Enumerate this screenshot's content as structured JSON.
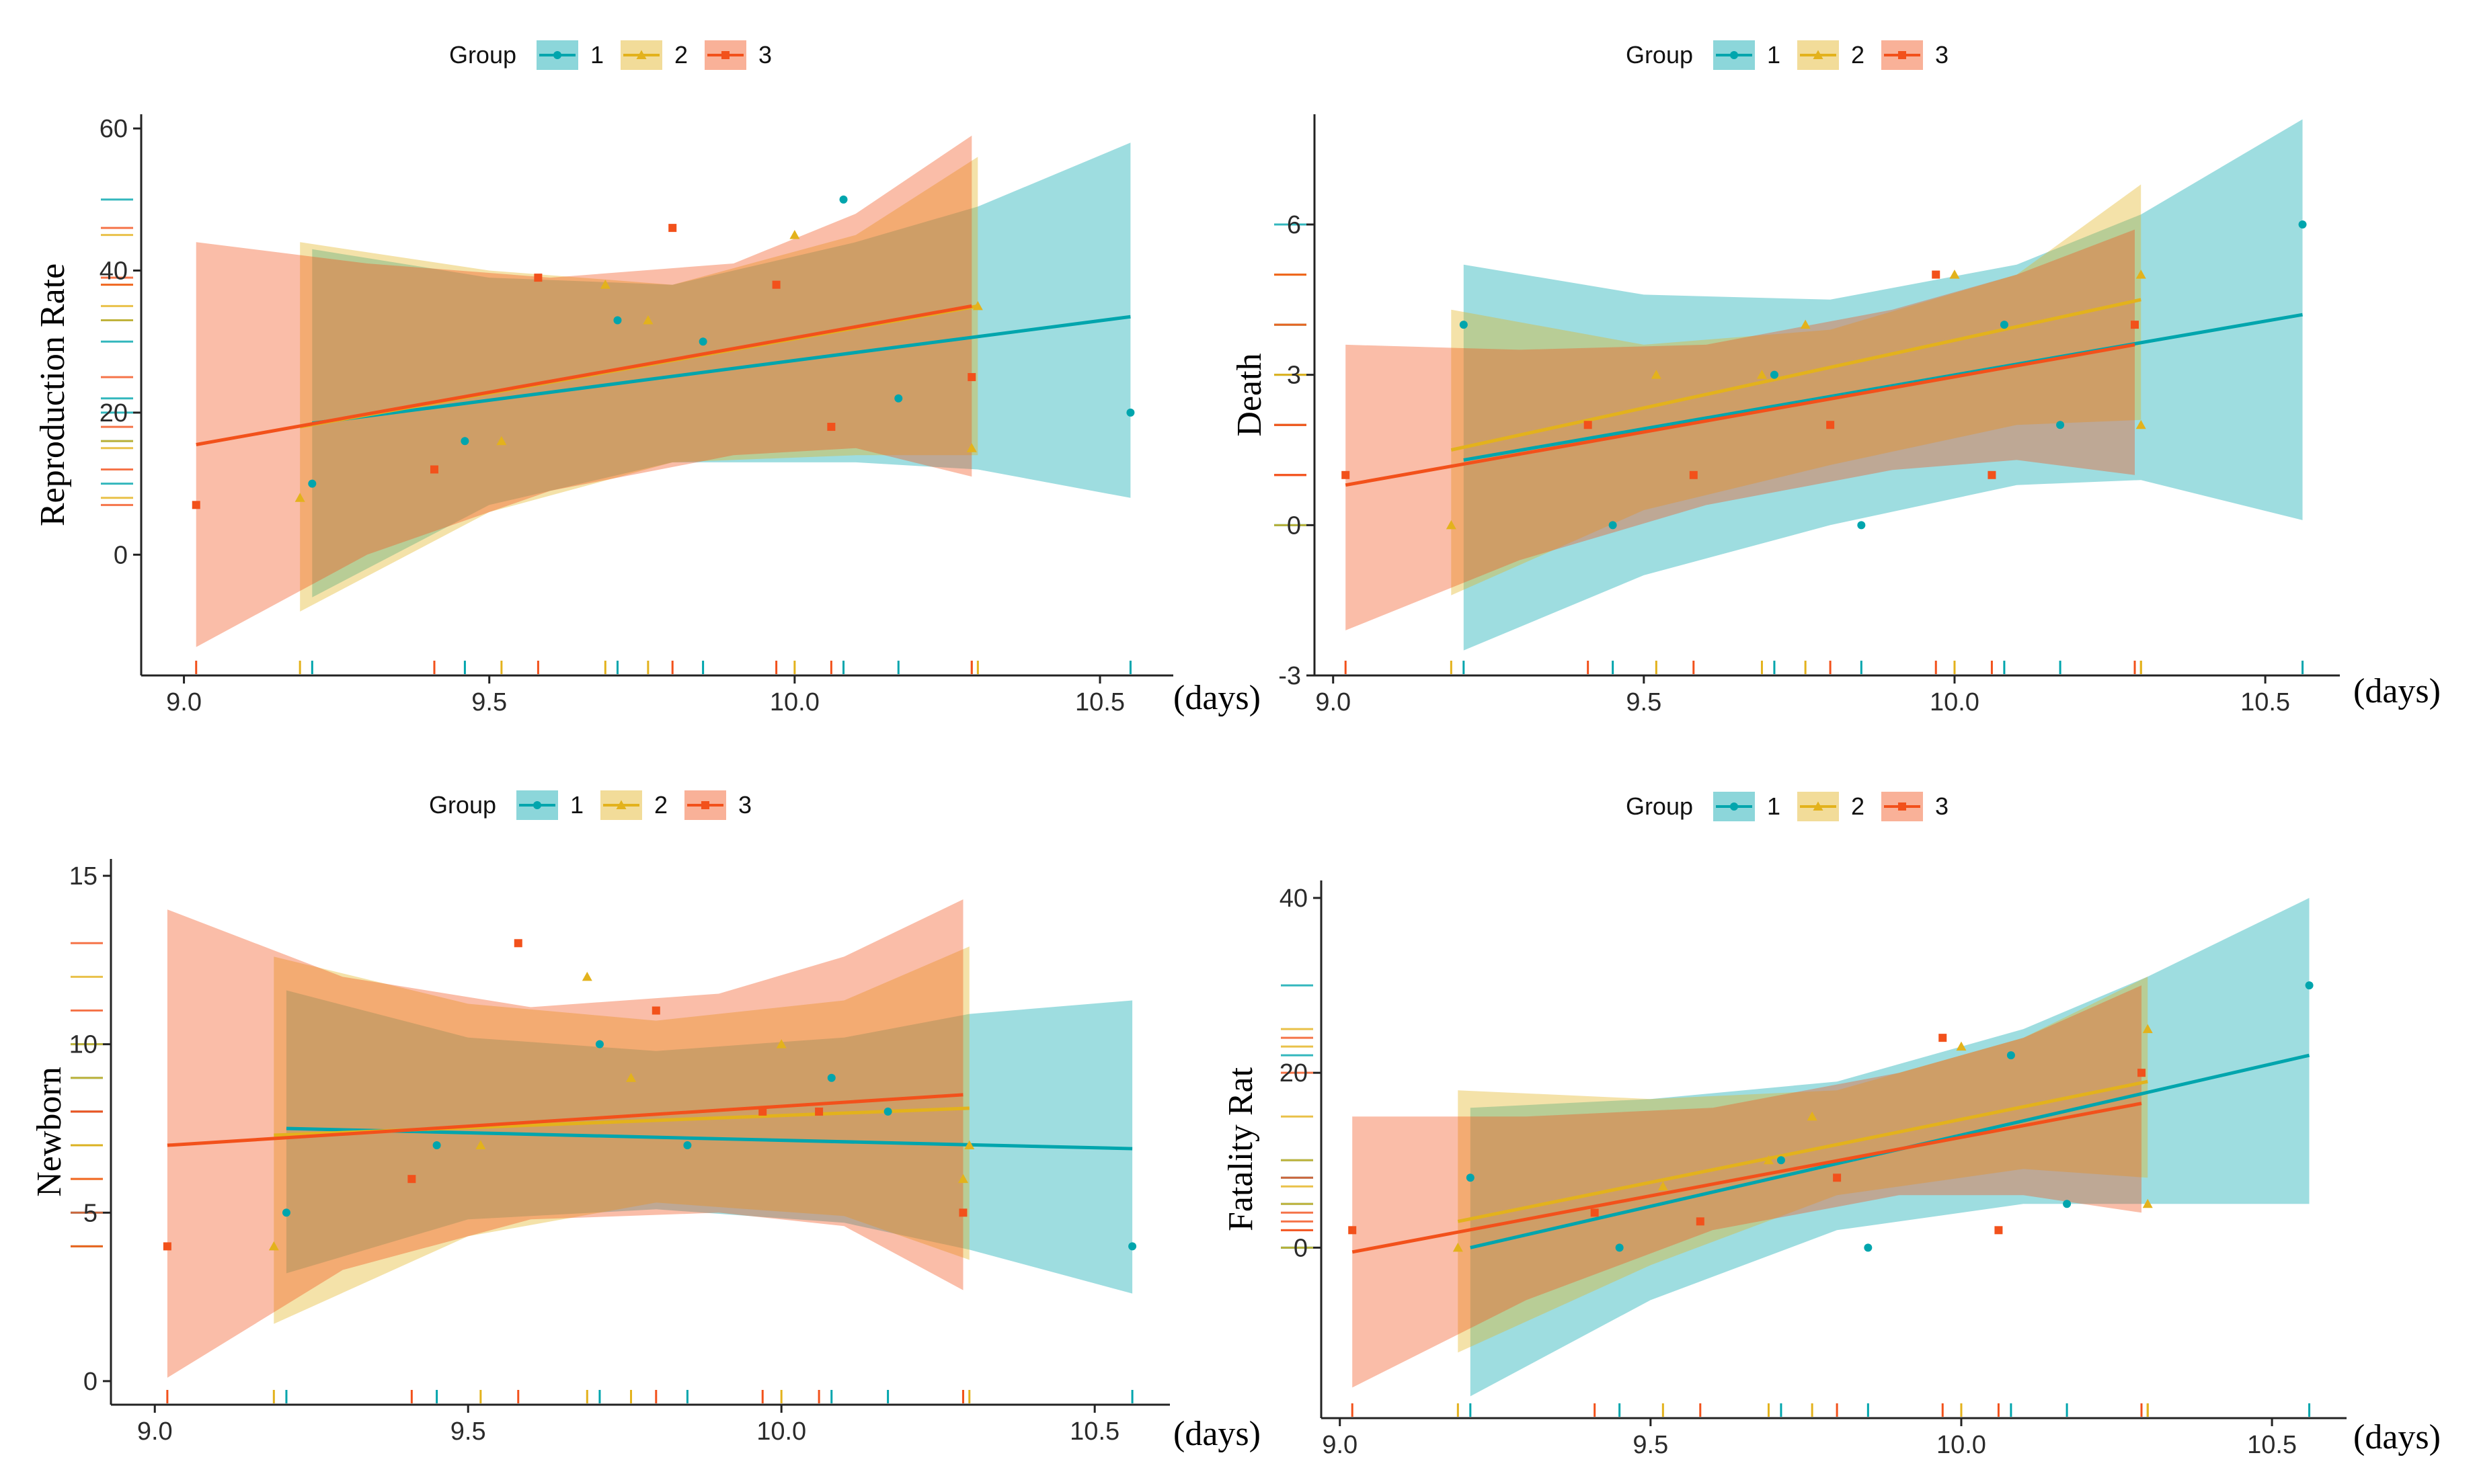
{
  "legend_title": "Group",
  "group_labels": [
    "1",
    "2",
    "3"
  ],
  "colors": {
    "1": "#00A5AD",
    "2": "#E3B21C",
    "3": "#F2511B"
  },
  "chart_data": [
    {
      "type": "scatter",
      "panel": "top-left",
      "title": "",
      "xlabel": "(days)",
      "ylabel": "Reproduction Rate",
      "xlim": [
        8.93,
        10.62
      ],
      "ylim": [
        -17,
        62
      ],
      "xticks": [
        "9.0",
        "9.5",
        "10.0",
        "10.5"
      ],
      "yticks": [
        "0",
        "20",
        "40",
        "60"
      ],
      "xtick_values": [
        9.0,
        9.5,
        10.0,
        10.5
      ],
      "ytick_values": [
        0,
        20,
        40,
        60
      ],
      "series": [
        {
          "name": "1",
          "points": [
            [
              9.21,
              10
            ],
            [
              9.46,
              16
            ],
            [
              9.71,
              33
            ],
            [
              9.85,
              30
            ],
            [
              10.08,
              50
            ],
            [
              10.17,
              22
            ],
            [
              10.55,
              20
            ]
          ],
          "fit": {
            "x": [
              9.21,
              10.55
            ],
            "y": [
              18.5,
              33.5
            ]
          },
          "band": {
            "x": [
              9.21,
              9.5,
              9.8,
              10.1,
              10.3,
              10.55
            ],
            "lower": [
              -6,
              7,
              13,
              13,
              12,
              8
            ],
            "upper": [
              43,
              39,
              38,
              44,
              49,
              58
            ]
          }
        },
        {
          "name": "2",
          "points": [
            [
              9.19,
              8
            ],
            [
              9.52,
              16
            ],
            [
              9.69,
              38
            ],
            [
              9.76,
              33
            ],
            [
              10.0,
              45
            ],
            [
              10.29,
              15
            ],
            [
              10.3,
              35
            ]
          ],
          "fit": {
            "x": [
              9.19,
              10.3
            ],
            "y": [
              18,
              35
            ]
          },
          "band": {
            "x": [
              9.19,
              9.5,
              9.8,
              10.1,
              10.3
            ],
            "lower": [
              -8,
              6,
              13,
              14,
              14
            ],
            "upper": [
              44,
              40,
              38,
              45,
              56
            ]
          }
        },
        {
          "name": "3",
          "points": [
            [
              9.02,
              7
            ],
            [
              9.41,
              12
            ],
            [
              9.58,
              39
            ],
            [
              9.8,
              46
            ],
            [
              9.97,
              38
            ],
            [
              10.06,
              18
            ],
            [
              10.29,
              25
            ]
          ],
          "fit": {
            "x": [
              9.02,
              10.29
            ],
            "y": [
              15.5,
              35
            ]
          },
          "band": {
            "x": [
              9.02,
              9.3,
              9.6,
              9.9,
              10.1,
              10.29
            ],
            "lower": [
              -13,
              0,
              9,
              14,
              15,
              11
            ],
            "upper": [
              44,
              41,
              39,
              41,
              48,
              59
            ]
          }
        }
      ]
    },
    {
      "type": "scatter",
      "panel": "top-right",
      "title": "",
      "xlabel": "(days)",
      "ylabel": "Death",
      "xlim": [
        8.97,
        10.62
      ],
      "ylim": [
        -3,
        8.2
      ],
      "xticks": [
        "9.0",
        "9.5",
        "10.0",
        "10.5"
      ],
      "yticks": [
        "-3",
        "0",
        "3",
        "6"
      ],
      "xtick_values": [
        9.0,
        9.5,
        10.0,
        10.5
      ],
      "ytick_values": [
        -3,
        0,
        3,
        6
      ],
      "series": [
        {
          "name": "1",
          "points": [
            [
              9.21,
              4
            ],
            [
              9.45,
              0
            ],
            [
              9.71,
              3
            ],
            [
              9.85,
              0
            ],
            [
              10.08,
              4
            ],
            [
              10.17,
              2
            ],
            [
              10.56,
              6
            ]
          ],
          "fit": {
            "x": [
              9.21,
              10.56
            ],
            "y": [
              1.3,
              4.2
            ]
          },
          "band": {
            "x": [
              9.21,
              9.5,
              9.8,
              10.1,
              10.3,
              10.56
            ],
            "lower": [
              -2.5,
              -1.0,
              0.0,
              0.8,
              0.9,
              0.1
            ],
            "upper": [
              5.2,
              4.6,
              4.5,
              5.2,
              6.2,
              8.1
            ]
          }
        },
        {
          "name": "2",
          "points": [
            [
              9.19,
              0
            ],
            [
              9.52,
              3
            ],
            [
              9.69,
              3
            ],
            [
              9.76,
              4
            ],
            [
              10.0,
              5
            ],
            [
              10.3,
              2
            ],
            [
              10.3,
              5
            ]
          ],
          "fit": {
            "x": [
              9.19,
              10.3
            ],
            "y": [
              1.5,
              4.5
            ]
          },
          "band": {
            "x": [
              9.19,
              9.5,
              9.8,
              10.1,
              10.3
            ],
            "lower": [
              -1.4,
              0.3,
              1.2,
              2.0,
              2.1
            ],
            "upper": [
              4.3,
              3.6,
              3.9,
              5.0,
              6.8
            ]
          }
        },
        {
          "name": "3",
          "points": [
            [
              9.02,
              1
            ],
            [
              9.41,
              2
            ],
            [
              9.58,
              1
            ],
            [
              9.8,
              2
            ],
            [
              9.97,
              5
            ],
            [
              10.06,
              1
            ],
            [
              10.29,
              4
            ]
          ],
          "fit": {
            "x": [
              9.02,
              10.29
            ],
            "y": [
              0.8,
              3.6
            ]
          },
          "band": {
            "x": [
              9.02,
              9.3,
              9.6,
              9.9,
              10.1,
              10.29
            ],
            "lower": [
              -2.1,
              -0.7,
              0.4,
              1.1,
              1.3,
              1.0
            ],
            "upper": [
              3.6,
              3.5,
              3.6,
              4.3,
              5.0,
              5.9
            ]
          }
        }
      ]
    },
    {
      "type": "scatter",
      "panel": "bottom-left",
      "title": "",
      "xlabel": "(days)",
      "ylabel": "Newborn",
      "xlim": [
        8.93,
        10.62
      ],
      "ylim": [
        -0.7,
        15.5
      ],
      "xticks": [
        "9.0",
        "9.5",
        "10.0",
        "10.5"
      ],
      "yticks": [
        "0",
        "5",
        "10",
        "15"
      ],
      "xtick_values": [
        9.0,
        9.5,
        10.0,
        10.5
      ],
      "ytick_values": [
        0,
        5,
        10,
        15
      ],
      "series": [
        {
          "name": "1",
          "points": [
            [
              9.21,
              5
            ],
            [
              9.45,
              7
            ],
            [
              9.71,
              10
            ],
            [
              9.85,
              7
            ],
            [
              10.08,
              9
            ],
            [
              10.17,
              8
            ],
            [
              10.56,
              4
            ]
          ],
          "fit": {
            "x": [
              9.21,
              10.56
            ],
            "y": [
              7.5,
              6.9
            ]
          },
          "band": {
            "x": [
              9.21,
              9.5,
              9.8,
              10.1,
              10.3,
              10.56
            ],
            "lower": [
              3.2,
              4.8,
              5.1,
              4.7,
              3.9,
              2.6
            ],
            "upper": [
              11.6,
              10.2,
              9.8,
              10.2,
              10.9,
              11.3
            ]
          }
        },
        {
          "name": "2",
          "points": [
            [
              9.19,
              4
            ],
            [
              9.52,
              7
            ],
            [
              9.69,
              12
            ],
            [
              9.76,
              9
            ],
            [
              10.0,
              10
            ],
            [
              10.29,
              6
            ],
            [
              10.3,
              7
            ]
          ],
          "fit": {
            "x": [
              9.19,
              10.3
            ],
            "y": [
              7.3,
              8.1
            ]
          },
          "band": {
            "x": [
              9.19,
              9.5,
              9.8,
              10.1,
              10.3
            ],
            "lower": [
              1.7,
              4.3,
              5.3,
              4.9,
              3.6
            ],
            "upper": [
              12.6,
              11.2,
              10.7,
              11.3,
              12.9
            ]
          }
        },
        {
          "name": "3",
          "points": [
            [
              9.02,
              4
            ],
            [
              9.41,
              6
            ],
            [
              9.58,
              13
            ],
            [
              9.8,
              11
            ],
            [
              9.97,
              8
            ],
            [
              10.06,
              8
            ],
            [
              10.29,
              5
            ]
          ],
          "fit": {
            "x": [
              9.02,
              10.29
            ],
            "y": [
              7.0,
              8.5
            ]
          },
          "band": {
            "x": [
              9.02,
              9.3,
              9.6,
              9.9,
              10.1,
              10.29
            ],
            "lower": [
              0.1,
              3.3,
              4.8,
              5.0,
              4.6,
              2.7
            ],
            "upper": [
              14.0,
              12.0,
              11.1,
              11.5,
              12.6,
              14.3
            ]
          }
        }
      ]
    },
    {
      "type": "scatter",
      "panel": "bottom-right",
      "title": "",
      "xlabel": "(days)",
      "ylabel": "Fatality Rat",
      "xlim": [
        8.97,
        10.62
      ],
      "ylim": [
        -19.5,
        42
      ],
      "xticks": [
        "9.0",
        "9.5",
        "10.0",
        "10.5"
      ],
      "yticks": [
        "0",
        "20",
        "40"
      ],
      "xtick_values": [
        9.0,
        9.5,
        10.0,
        10.5
      ],
      "ytick_values": [
        0,
        20,
        40
      ],
      "series": [
        {
          "name": "1",
          "points": [
            [
              9.21,
              8
            ],
            [
              9.45,
              0
            ],
            [
              9.71,
              10
            ],
            [
              9.85,
              0
            ],
            [
              10.08,
              22
            ],
            [
              10.17,
              5
            ],
            [
              10.56,
              30
            ]
          ],
          "fit": {
            "x": [
              9.21,
              10.56
            ],
            "y": [
              0,
              22
            ]
          },
          "band": {
            "x": [
              9.21,
              9.5,
              9.8,
              10.1,
              10.3,
              10.56
            ],
            "lower": [
              -17,
              -6,
              2,
              5,
              5,
              5
            ],
            "upper": [
              16,
              17,
              19,
              25,
              31,
              40
            ]
          }
        },
        {
          "name": "2",
          "points": [
            [
              9.19,
              0
            ],
            [
              9.52,
              7
            ],
            [
              9.69,
              10
            ],
            [
              9.76,
              15
            ],
            [
              10.0,
              23
            ],
            [
              10.3,
              5
            ],
            [
              10.3,
              25
            ]
          ],
          "fit": {
            "x": [
              9.19,
              10.3
            ],
            "y": [
              3,
              19
            ]
          },
          "band": {
            "x": [
              9.19,
              9.5,
              9.8,
              10.1,
              10.3
            ],
            "lower": [
              -12,
              -2,
              6,
              9,
              8
            ],
            "upper": [
              18,
              17,
              18,
              24,
              31
            ]
          }
        },
        {
          "name": "3",
          "points": [
            [
              9.02,
              2
            ],
            [
              9.41,
              4
            ],
            [
              9.58,
              3
            ],
            [
              9.8,
              8
            ],
            [
              9.97,
              24
            ],
            [
              10.06,
              2
            ],
            [
              10.29,
              20
            ]
          ],
          "fit": {
            "x": [
              9.02,
              10.29
            ],
            "y": [
              -0.5,
              16.5
            ]
          },
          "band": {
            "x": [
              9.02,
              9.3,
              9.6,
              9.9,
              10.1,
              10.29
            ],
            "lower": [
              -16,
              -6,
              2,
              6,
              6,
              4
            ],
            "upper": [
              15,
              15,
              16,
              20,
              24,
              30
            ]
          }
        }
      ]
    }
  ]
}
